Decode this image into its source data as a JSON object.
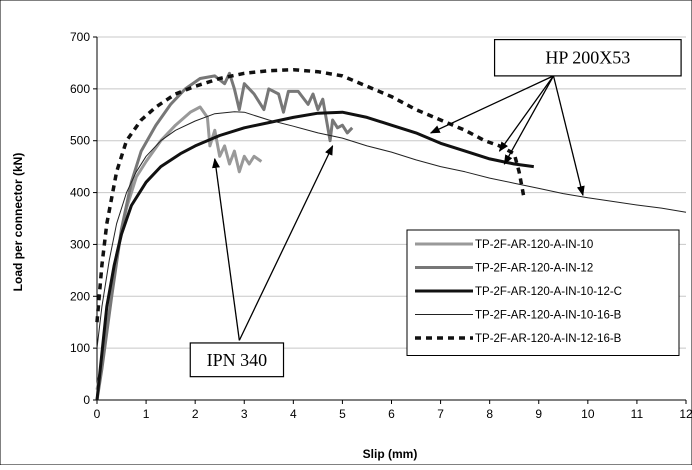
{
  "chart_data": {
    "type": "line",
    "title": "",
    "xlabel": "Slip (mm)",
    "ylabel": "Load per connector (kN)",
    "xlim": [
      0,
      12
    ],
    "ylim": [
      0,
      700
    ],
    "x_ticks": [
      0,
      1,
      2,
      3,
      4,
      5,
      6,
      7,
      8,
      9,
      10,
      11,
      12
    ],
    "y_ticks": [
      0,
      100,
      200,
      300,
      400,
      500,
      600,
      700
    ],
    "grid": "horizontal",
    "legend_position": "right",
    "series": [
      {
        "name": "TP-2F-AR-120-A-IN-10",
        "color": "#999999",
        "style": "thick-solid",
        "points": [
          [
            0,
            20
          ],
          [
            0.1,
            70
          ],
          [
            0.25,
            170
          ],
          [
            0.4,
            280
          ],
          [
            0.6,
            370
          ],
          [
            0.8,
            430
          ],
          [
            1,
            460
          ],
          [
            1.3,
            500
          ],
          [
            1.6,
            530
          ],
          [
            1.9,
            555
          ],
          [
            2.1,
            565
          ],
          [
            2.25,
            545
          ],
          [
            2.3,
            490
          ],
          [
            2.4,
            520
          ],
          [
            2.5,
            470
          ],
          [
            2.6,
            490
          ],
          [
            2.7,
            455
          ],
          [
            2.8,
            480
          ],
          [
            2.9,
            440
          ],
          [
            3,
            470
          ],
          [
            3.1,
            455
          ],
          [
            3.2,
            470
          ],
          [
            3.35,
            460
          ]
        ]
      },
      {
        "name": "TP-2F-AR-120-A-IN-12",
        "color": "#777777",
        "style": "thick-solid",
        "points": [
          [
            0,
            0
          ],
          [
            0.1,
            60
          ],
          [
            0.3,
            200
          ],
          [
            0.5,
            330
          ],
          [
            0.7,
            420
          ],
          [
            0.9,
            480
          ],
          [
            1.2,
            530
          ],
          [
            1.5,
            570
          ],
          [
            1.8,
            600
          ],
          [
            2.1,
            620
          ],
          [
            2.4,
            625
          ],
          [
            2.6,
            610
          ],
          [
            2.7,
            630
          ],
          [
            2.8,
            600
          ],
          [
            2.9,
            560
          ],
          [
            3,
            610
          ],
          [
            3.2,
            590
          ],
          [
            3.4,
            560
          ],
          [
            3.5,
            600
          ],
          [
            3.7,
            590
          ],
          [
            3.8,
            555
          ],
          [
            3.9,
            595
          ],
          [
            4.1,
            595
          ],
          [
            4.3,
            570
          ],
          [
            4.4,
            590
          ],
          [
            4.5,
            560
          ],
          [
            4.6,
            580
          ],
          [
            4.75,
            500
          ],
          [
            4.8,
            540
          ],
          [
            4.9,
            525
          ],
          [
            5,
            530
          ],
          [
            5.1,
            515
          ],
          [
            5.2,
            525
          ]
        ]
      },
      {
        "name": "TP-2F-AR-120-A-IN-10-12-C",
        "color": "#111111",
        "style": "thick-solid",
        "points": [
          [
            0,
            0
          ],
          [
            0.1,
            90
          ],
          [
            0.2,
            180
          ],
          [
            0.35,
            260
          ],
          [
            0.5,
            320
          ],
          [
            0.7,
            375
          ],
          [
            1,
            420
          ],
          [
            1.3,
            450
          ],
          [
            1.7,
            475
          ],
          [
            2,
            490
          ],
          [
            2.5,
            510
          ],
          [
            3,
            525
          ],
          [
            3.5,
            535
          ],
          [
            4,
            545
          ],
          [
            4.5,
            553
          ],
          [
            5,
            555
          ],
          [
            5.5,
            545
          ],
          [
            6,
            530
          ],
          [
            6.5,
            515
          ],
          [
            7,
            495
          ],
          [
            7.5,
            480
          ],
          [
            8,
            465
          ],
          [
            8.5,
            455
          ],
          [
            8.9,
            450
          ]
        ]
      },
      {
        "name": "TP-2F-AR-120-A-IN-10-16-B",
        "color": "#222222",
        "style": "thin-solid",
        "points": [
          [
            0,
            100
          ],
          [
            0.1,
            180
          ],
          [
            0.25,
            270
          ],
          [
            0.4,
            340
          ],
          [
            0.6,
            400
          ],
          [
            0.8,
            440
          ],
          [
            1,
            470
          ],
          [
            1.3,
            500
          ],
          [
            1.6,
            520
          ],
          [
            2,
            538
          ],
          [
            2.4,
            552
          ],
          [
            2.8,
            556
          ],
          [
            3,
            555
          ],
          [
            3.5,
            540
          ],
          [
            4,
            528
          ],
          [
            4.5,
            515
          ],
          [
            5,
            505
          ],
          [
            5.5,
            490
          ],
          [
            6,
            478
          ],
          [
            6.5,
            463
          ],
          [
            7,
            450
          ],
          [
            7.5,
            440
          ],
          [
            8,
            428
          ],
          [
            8.5,
            418
          ],
          [
            9,
            408
          ],
          [
            9.5,
            398
          ],
          [
            10,
            390
          ],
          [
            10.5,
            383
          ],
          [
            11,
            376
          ],
          [
            11.5,
            370
          ],
          [
            12,
            362
          ]
        ]
      },
      {
        "name": "TP-2F-AR-120-A-IN-12-16-B",
        "color": "#111111",
        "style": "dashed",
        "points": [
          [
            0,
            150
          ],
          [
            0.1,
            260
          ],
          [
            0.2,
            340
          ],
          [
            0.4,
            440
          ],
          [
            0.6,
            500
          ],
          [
            0.9,
            540
          ],
          [
            1.2,
            565
          ],
          [
            1.6,
            590
          ],
          [
            2,
            605
          ],
          [
            2.5,
            620
          ],
          [
            3,
            630
          ],
          [
            3.5,
            635
          ],
          [
            4,
            637
          ],
          [
            4.5,
            633
          ],
          [
            5,
            625
          ],
          [
            5.5,
            605
          ],
          [
            6,
            585
          ],
          [
            6.5,
            560
          ],
          [
            7,
            540
          ],
          [
            7.5,
            520
          ],
          [
            7.9,
            500
          ],
          [
            8.2,
            490
          ],
          [
            8.5,
            475
          ],
          [
            8.6,
            440
          ],
          [
            8.7,
            390
          ]
        ]
      }
    ],
    "annotations": [
      {
        "id": "ipn",
        "text": "IPN 340",
        "box_data": [
          1.9,
          3.8,
          110,
          45
        ],
        "arrows": [
          {
            "from": [
              2.9,
              115
            ],
            "to": [
              2.4,
              465
            ]
          },
          {
            "from": [
              2.9,
              115
            ],
            "to": [
              4.8,
              490
            ]
          }
        ]
      },
      {
        "id": "hp",
        "text": "HP 200X53",
        "box_data": [
          8.1,
          11.9,
          695,
          625
        ],
        "arrows": [
          {
            "from": [
              9.3,
              625
            ],
            "to": [
              6.8,
              515
            ]
          },
          {
            "from": [
              9.3,
              625
            ],
            "to": [
              8.2,
              480
            ]
          },
          {
            "from": [
              9.3,
              625
            ],
            "to": [
              8.3,
              455
            ]
          },
          {
            "from": [
              9.3,
              625
            ],
            "to": [
              9.9,
              395
            ]
          }
        ]
      }
    ]
  }
}
